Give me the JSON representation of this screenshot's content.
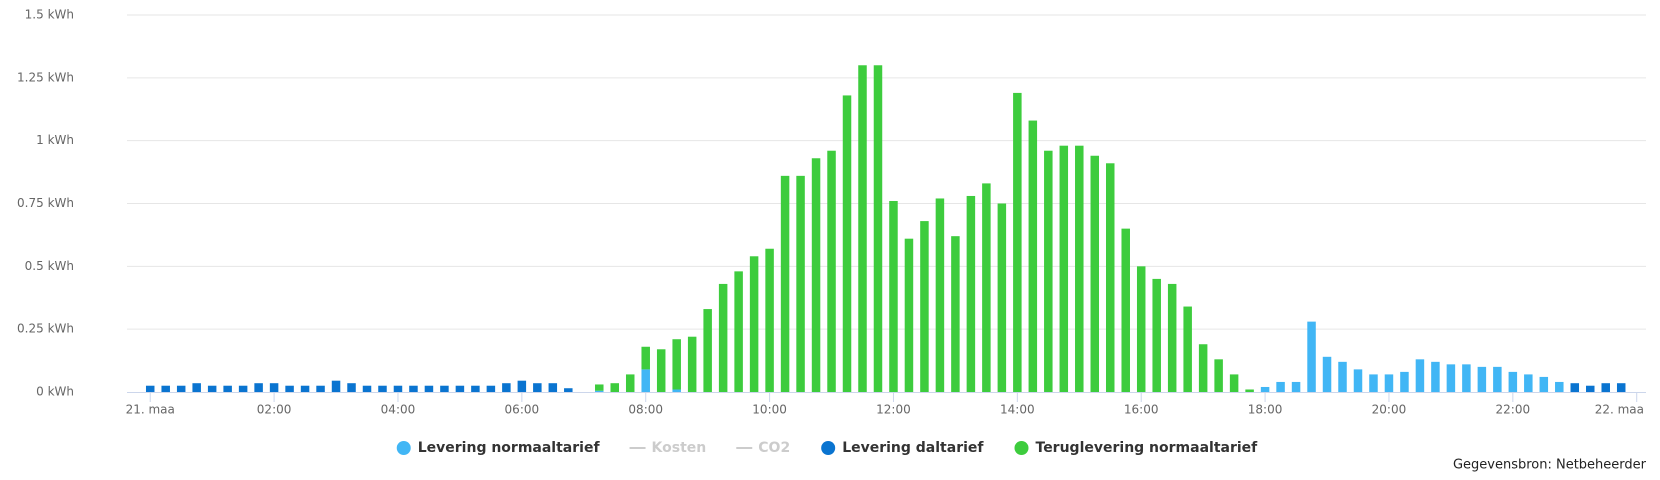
{
  "chart_data": {
    "type": "stacked_bar",
    "credits": "Gegevensbron: Netbeheerder",
    "x": [
      0,
      0.25,
      0.5,
      0.75,
      1,
      1.25,
      1.5,
      1.75,
      2,
      2.25,
      2.5,
      2.75,
      3,
      3.25,
      3.5,
      3.75,
      4,
      4.25,
      4.5,
      4.75,
      5,
      5.25,
      5.5,
      5.75,
      6,
      6.25,
      6.5,
      6.75,
      7,
      7.25,
      7.5,
      7.75,
      8,
      8.25,
      8.5,
      8.75,
      9,
      9.25,
      9.5,
      9.75,
      10,
      10.25,
      10.5,
      10.75,
      11,
      11.25,
      11.5,
      11.75,
      12,
      12.25,
      12.5,
      12.75,
      13,
      13.25,
      13.5,
      13.75,
      14,
      14.25,
      14.5,
      14.75,
      15,
      15.25,
      15.5,
      15.75,
      16,
      16.25,
      16.5,
      16.75,
      17,
      17.25,
      17.5,
      17.75,
      18,
      18.25,
      18.5,
      18.75,
      19,
      19.25,
      19.5,
      19.75,
      20,
      20.25,
      20.5,
      20.75,
      21,
      21.25,
      21.5,
      21.75,
      22,
      22.25,
      22.5,
      22.75,
      23,
      23.25,
      23.5,
      23.75
    ],
    "xlim": [
      -0.375,
      24.15
    ],
    "xticks": [
      {
        "value": 0,
        "label": "21. maa"
      },
      {
        "value": 2,
        "label": "02:00"
      },
      {
        "value": 4,
        "label": "04:00"
      },
      {
        "value": 6,
        "label": "06:00"
      },
      {
        "value": 8,
        "label": "08:00"
      },
      {
        "value": 10,
        "label": "10:00"
      },
      {
        "value": 12,
        "label": "12:00"
      },
      {
        "value": 14,
        "label": "14:00"
      },
      {
        "value": 16,
        "label": "16:00"
      },
      {
        "value": 18,
        "label": "18:00"
      },
      {
        "value": 20,
        "label": "20:00"
      },
      {
        "value": 22,
        "label": "22:00"
      },
      {
        "value": 24,
        "label": "22. maa"
      }
    ],
    "ylim": [
      0,
      1.5
    ],
    "yticks": [
      {
        "value": 0,
        "label": "0 kWh"
      },
      {
        "value": 0.25,
        "label": "0.25 kWh"
      },
      {
        "value": 0.5,
        "label": "0.5 kWh"
      },
      {
        "value": 0.75,
        "label": "0.75 kWh"
      },
      {
        "value": 1,
        "label": "1 kWh"
      },
      {
        "value": 1.25,
        "label": "1.25 kWh"
      },
      {
        "value": 1.5,
        "label": "1.5 kWh"
      }
    ],
    "grid": true,
    "series": [
      {
        "name": "Levering normaaltarief",
        "color": "#41b6f5",
        "values": [
          null,
          null,
          null,
          null,
          null,
          null,
          null,
          null,
          null,
          null,
          null,
          null,
          null,
          null,
          null,
          null,
          null,
          null,
          null,
          null,
          null,
          null,
          null,
          null,
          null,
          null,
          null,
          null,
          null,
          0.005,
          null,
          null,
          0.09,
          null,
          0.01,
          null,
          null,
          null,
          null,
          null,
          null,
          null,
          null,
          null,
          null,
          null,
          null,
          null,
          null,
          null,
          null,
          null,
          null,
          null,
          null,
          null,
          null,
          null,
          null,
          null,
          null,
          null,
          null,
          null,
          null,
          null,
          null,
          null,
          null,
          null,
          null,
          null,
          0.02,
          0.04,
          0.04,
          0.28,
          0.14,
          0.12,
          0.09,
          0.07,
          0.07,
          0.08,
          0.13,
          0.12,
          0.11,
          0.11,
          0.1,
          0.1,
          0.08,
          0.07,
          0.06,
          0.04,
          null,
          null,
          null,
          null
        ]
      },
      {
        "name": "Kosten",
        "type": "line",
        "color": "#cccccc",
        "hidden": true
      },
      {
        "name": "CO2",
        "type": "line",
        "color": "#cccccc",
        "hidden": true
      },
      {
        "name": "Levering daltarief",
        "color": "#0a74d0",
        "values": [
          0.025,
          0.025,
          0.025,
          0.035,
          0.025,
          0.025,
          0.025,
          0.035,
          0.035,
          0.025,
          0.025,
          0.025,
          0.045,
          0.035,
          0.025,
          0.025,
          0.025,
          0.025,
          0.025,
          0.025,
          0.025,
          0.025,
          0.025,
          0.035,
          0.045,
          0.035,
          0.035,
          0.015,
          null,
          null,
          null,
          null,
          null,
          null,
          null,
          null,
          null,
          null,
          null,
          null,
          null,
          null,
          null,
          null,
          null,
          null,
          null,
          null,
          null,
          null,
          null,
          null,
          null,
          null,
          null,
          null,
          null,
          null,
          null,
          null,
          null,
          null,
          null,
          null,
          null,
          null,
          null,
          null,
          null,
          null,
          null,
          null,
          null,
          null,
          null,
          null,
          null,
          null,
          null,
          null,
          null,
          null,
          null,
          null,
          null,
          null,
          null,
          null,
          null,
          null,
          null,
          null,
          0.035,
          0.025,
          0.035,
          0.035
        ]
      },
      {
        "name": "Teruglevering normaaltarief",
        "color": "#3dcc3d",
        "values": [
          null,
          null,
          null,
          null,
          null,
          null,
          null,
          null,
          null,
          null,
          null,
          null,
          null,
          null,
          null,
          null,
          null,
          null,
          null,
          null,
          null,
          null,
          null,
          null,
          null,
          null,
          null,
          null,
          null,
          0.025,
          0.035,
          0.07,
          0.09,
          0.17,
          0.2,
          0.22,
          0.33,
          0.43,
          0.48,
          0.54,
          0.57,
          0.86,
          0.86,
          0.93,
          0.96,
          1.18,
          1.3,
          1.3,
          0.76,
          0.61,
          0.68,
          0.77,
          0.62,
          0.78,
          0.83,
          0.75,
          1.19,
          1.08,
          0.96,
          0.98,
          0.98,
          0.94,
          0.91,
          0.65,
          0.5,
          0.45,
          0.43,
          0.34,
          0.19,
          0.13,
          0.07,
          0.01,
          null,
          null,
          null,
          null,
          null,
          null,
          null,
          null,
          null,
          null,
          null,
          null,
          null,
          null,
          null,
          null,
          null,
          null,
          null,
          null,
          null,
          null,
          null,
          null
        ]
      }
    ]
  }
}
